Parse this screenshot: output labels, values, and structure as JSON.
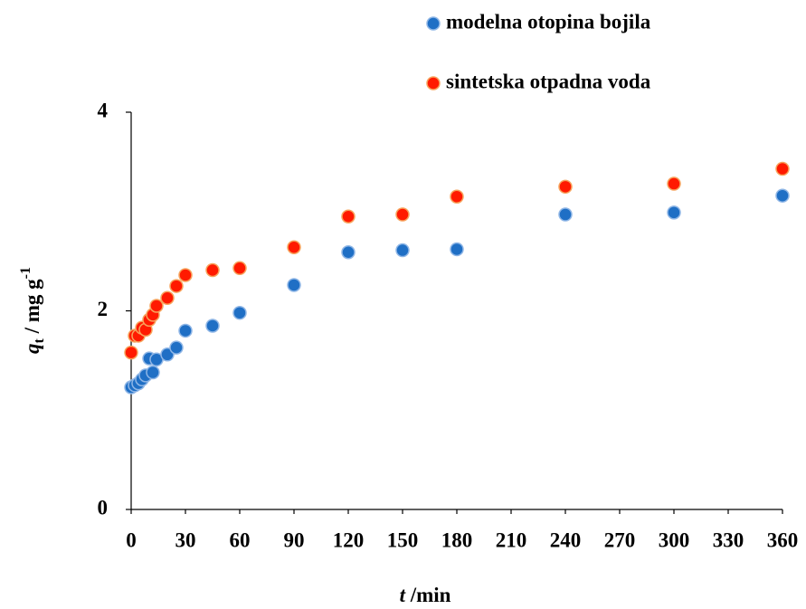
{
  "chart_data": {
    "type": "scatter",
    "x_label": {
      "variable": "t",
      "unit": " /min"
    },
    "y_label": {
      "variable": "q",
      "subscript": "t",
      "unit": " / mg g",
      "superscript": "-1"
    },
    "x": [
      0,
      2,
      4,
      6,
      8,
      10,
      12,
      14,
      20,
      25,
      30,
      45,
      60,
      90,
      120,
      150,
      180,
      240,
      300,
      360
    ],
    "series": [
      {
        "name": "modelna otopina bojila",
        "color": "#1f6fc5",
        "values": [
          1.23,
          1.25,
          1.27,
          1.31,
          1.35,
          1.52,
          1.38,
          1.51,
          1.56,
          1.63,
          1.8,
          1.85,
          1.98,
          2.26,
          2.59,
          2.61,
          2.62,
          2.97,
          2.99,
          3.16
        ]
      },
      {
        "name": "sintetska otpadna voda",
        "color": "#ff1a00",
        "values": [
          1.58,
          1.75,
          1.75,
          1.83,
          1.81,
          1.91,
          1.96,
          2.05,
          2.13,
          2.25,
          2.36,
          2.41,
          2.43,
          2.64,
          2.95,
          2.97,
          3.15,
          3.25,
          3.28,
          3.43
        ]
      }
    ],
    "xlim": [
      0,
      360
    ],
    "xticks": [
      0,
      30,
      60,
      90,
      120,
      150,
      180,
      210,
      240,
      270,
      300,
      330,
      360
    ],
    "ylim": [
      0,
      4
    ],
    "yticks": [
      0,
      2,
      4
    ],
    "grid": false
  }
}
